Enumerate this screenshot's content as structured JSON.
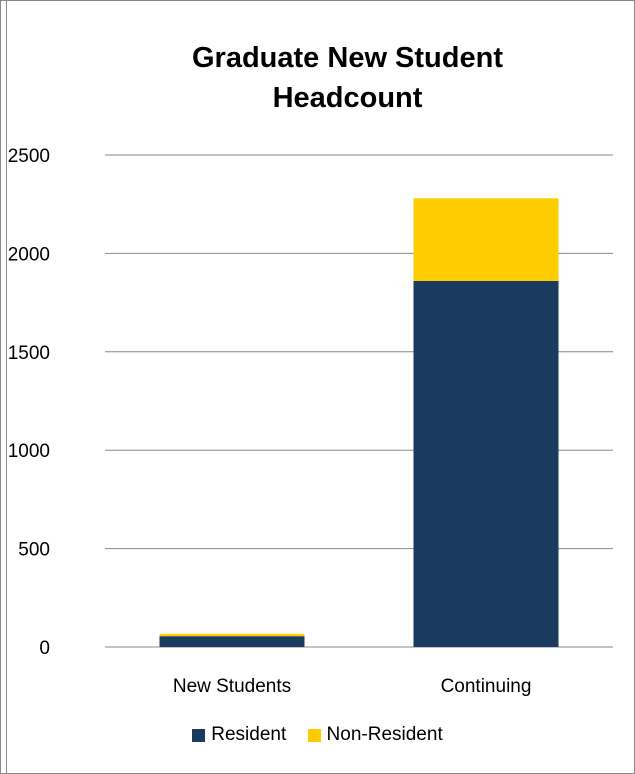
{
  "chart_data": {
    "type": "bar",
    "stacked": true,
    "title": [
      "Graduate New Student",
      "Headcount"
    ],
    "categories": [
      "New Students",
      "Continuing"
    ],
    "series": [
      {
        "name": "Resident",
        "color": "#1a3a60",
        "values": [
          55,
          1860
        ]
      },
      {
        "name": "Non-Resident",
        "color": "#ffcc00",
        "values": [
          12,
          420
        ]
      }
    ],
    "ylim": [
      0,
      2500
    ],
    "yticks": [
      0,
      500,
      1000,
      1500,
      2000,
      2500
    ],
    "grid": true,
    "legend_position": "bottom"
  }
}
